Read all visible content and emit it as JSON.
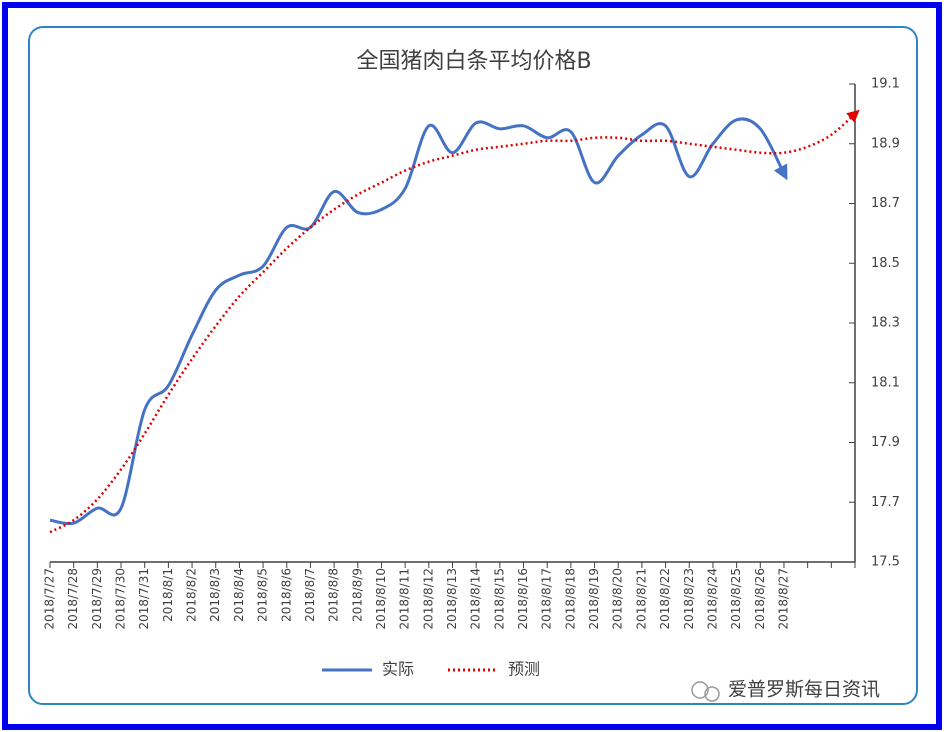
{
  "chart_data": {
    "type": "line",
    "title": "全国猪肉白条平均价格B",
    "categories": [
      "2018/7/27",
      "2018/7/28",
      "2018/7/29",
      "2018/7/30",
      "2018/7/31",
      "2018/8/1",
      "2018/8/2",
      "2018/8/3",
      "2018/8/4",
      "2018/8/5",
      "2018/8/6",
      "2018/8/7",
      "2018/8/8",
      "2018/8/9",
      "2018/8/10",
      "2018/8/11",
      "2018/8/12",
      "2018/8/13",
      "2018/8/14",
      "2018/8/15",
      "2018/8/16",
      "2018/8/17",
      "2018/8/18",
      "2018/8/19",
      "2018/8/20",
      "2018/8/21",
      "2018/8/22",
      "2018/8/23",
      "2018/8/24",
      "2018/8/25",
      "2018/8/26",
      "2018/8/27",
      null,
      null,
      null
    ],
    "series": [
      {
        "name": "实际",
        "color": "#4472c4",
        "dash": "solid",
        "values": [
          17.64,
          17.63,
          17.68,
          17.68,
          18.01,
          18.09,
          18.26,
          18.41,
          18.46,
          18.49,
          18.62,
          18.62,
          18.74,
          18.67,
          18.68,
          18.75,
          18.96,
          18.87,
          18.97,
          18.95,
          18.96,
          18.92,
          18.94,
          18.77,
          18.86,
          18.93,
          18.96,
          18.79,
          18.9,
          18.98,
          18.95,
          18.8,
          null,
          null,
          null
        ]
      },
      {
        "name": "预测",
        "color": "#e00000",
        "dash": "dotted",
        "values": [
          17.6,
          17.64,
          17.71,
          17.81,
          17.93,
          18.06,
          18.18,
          18.29,
          18.39,
          18.47,
          18.55,
          18.62,
          18.68,
          18.73,
          18.77,
          18.81,
          18.84,
          18.86,
          18.88,
          18.89,
          18.9,
          18.91,
          18.91,
          18.92,
          18.92,
          18.91,
          18.91,
          18.9,
          18.89,
          18.88,
          18.87,
          18.87,
          18.89,
          18.93,
          19.0
        ]
      }
    ],
    "ylim": [
      17.5,
      19.1
    ],
    "yticks": [
      17.5,
      17.7,
      17.9,
      18.1,
      18.3,
      18.5,
      18.7,
      18.9,
      19.1
    ],
    "y_axis_side": "right",
    "grid": false,
    "legend": "bottom",
    "watermark": "爱普罗斯每日资讯"
  }
}
